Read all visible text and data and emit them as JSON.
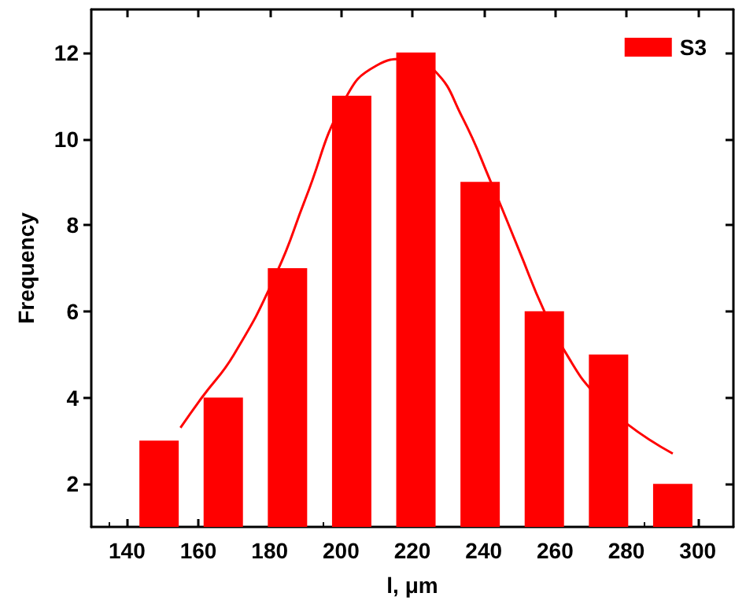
{
  "chart_data": {
    "type": "bar",
    "xlabel": "l, μm",
    "ylabel": "Frequency",
    "x": [
      149,
      167,
      185,
      203,
      221,
      239,
      257,
      275,
      293
    ],
    "series": [
      {
        "name": "S3",
        "color": "#ff0000",
        "values": [
          3,
          4,
          7,
          11,
          12,
          9,
          6,
          5,
          2
        ]
      },
      {
        "type": "line",
        "color": "#ff0000",
        "x": [
          155,
          161,
          170,
          182,
          190,
          201,
          210,
          218,
          226,
          234,
          242,
          250,
          257,
          264,
          271,
          280,
          293
        ],
        "values": [
          3.3,
          4.0,
          5.0,
          6.9,
          8.6,
          10.9,
          11.7,
          11.85,
          11.6,
          10.5,
          9.0,
          7.4,
          6.0,
          4.9,
          4.1,
          3.4,
          2.7
        ]
      }
    ],
    "xlim": [
      130,
      310
    ],
    "xticks": [
      140,
      160,
      180,
      200,
      220,
      240,
      260,
      280,
      300
    ],
    "ylim": [
      1,
      13
    ],
    "yticks": [
      2,
      4,
      6,
      8,
      10,
      12
    ],
    "marker": "none",
    "line_style": "solid",
    "legend": "top right"
  }
}
